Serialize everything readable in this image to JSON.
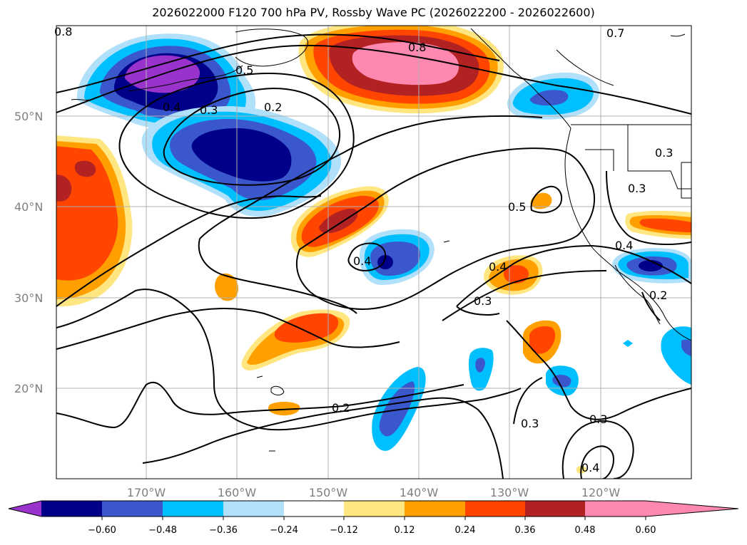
{
  "title": "2026022000 F120 700 hPa PV, Rossby Wave PC (2026022200 - 2026022600)",
  "map": {
    "lat_labels": [
      "50°N",
      "40°N",
      "30°N",
      "20°N"
    ],
    "lon_labels": [
      "170°W",
      "160°W",
      "150°W",
      "140°W",
      "130°W",
      "120°W"
    ],
    "contour_labels": [
      "0.8",
      "0.7",
      "0.8",
      "0.5",
      "0.4",
      "0.3",
      "0.2",
      "0.3",
      "0.3",
      "0.5",
      "0.4",
      "0.4",
      "0.4",
      "0.3",
      "0.2",
      "0.3",
      "0.3",
      "0.4",
      "0.2"
    ],
    "colors": {
      "purple": "#9933cc",
      "navy": "#00008b",
      "royal": "#3a57cc",
      "cyan": "#00bfff",
      "lightblue": "#b0e0fa",
      "yellow": "#ffe680",
      "orange": "#ffa000",
      "redorange": "#ff4500",
      "firebrick": "#b22222",
      "pink": "#ff88b0"
    }
  },
  "colorbar": {
    "ticks": [
      "−0.60",
      "−0.48",
      "−0.36",
      "−0.24",
      "−0.12",
      "0.12",
      "0.24",
      "0.36",
      "0.48",
      "0.60"
    ],
    "bins": [
      "#9933cc",
      "#00008b",
      "#3a57cc",
      "#00bfff",
      "#b0e0fa",
      "#ffffff",
      "#ffe680",
      "#ffa000",
      "#ff4500",
      "#b22222",
      "#ff88b0"
    ]
  }
}
